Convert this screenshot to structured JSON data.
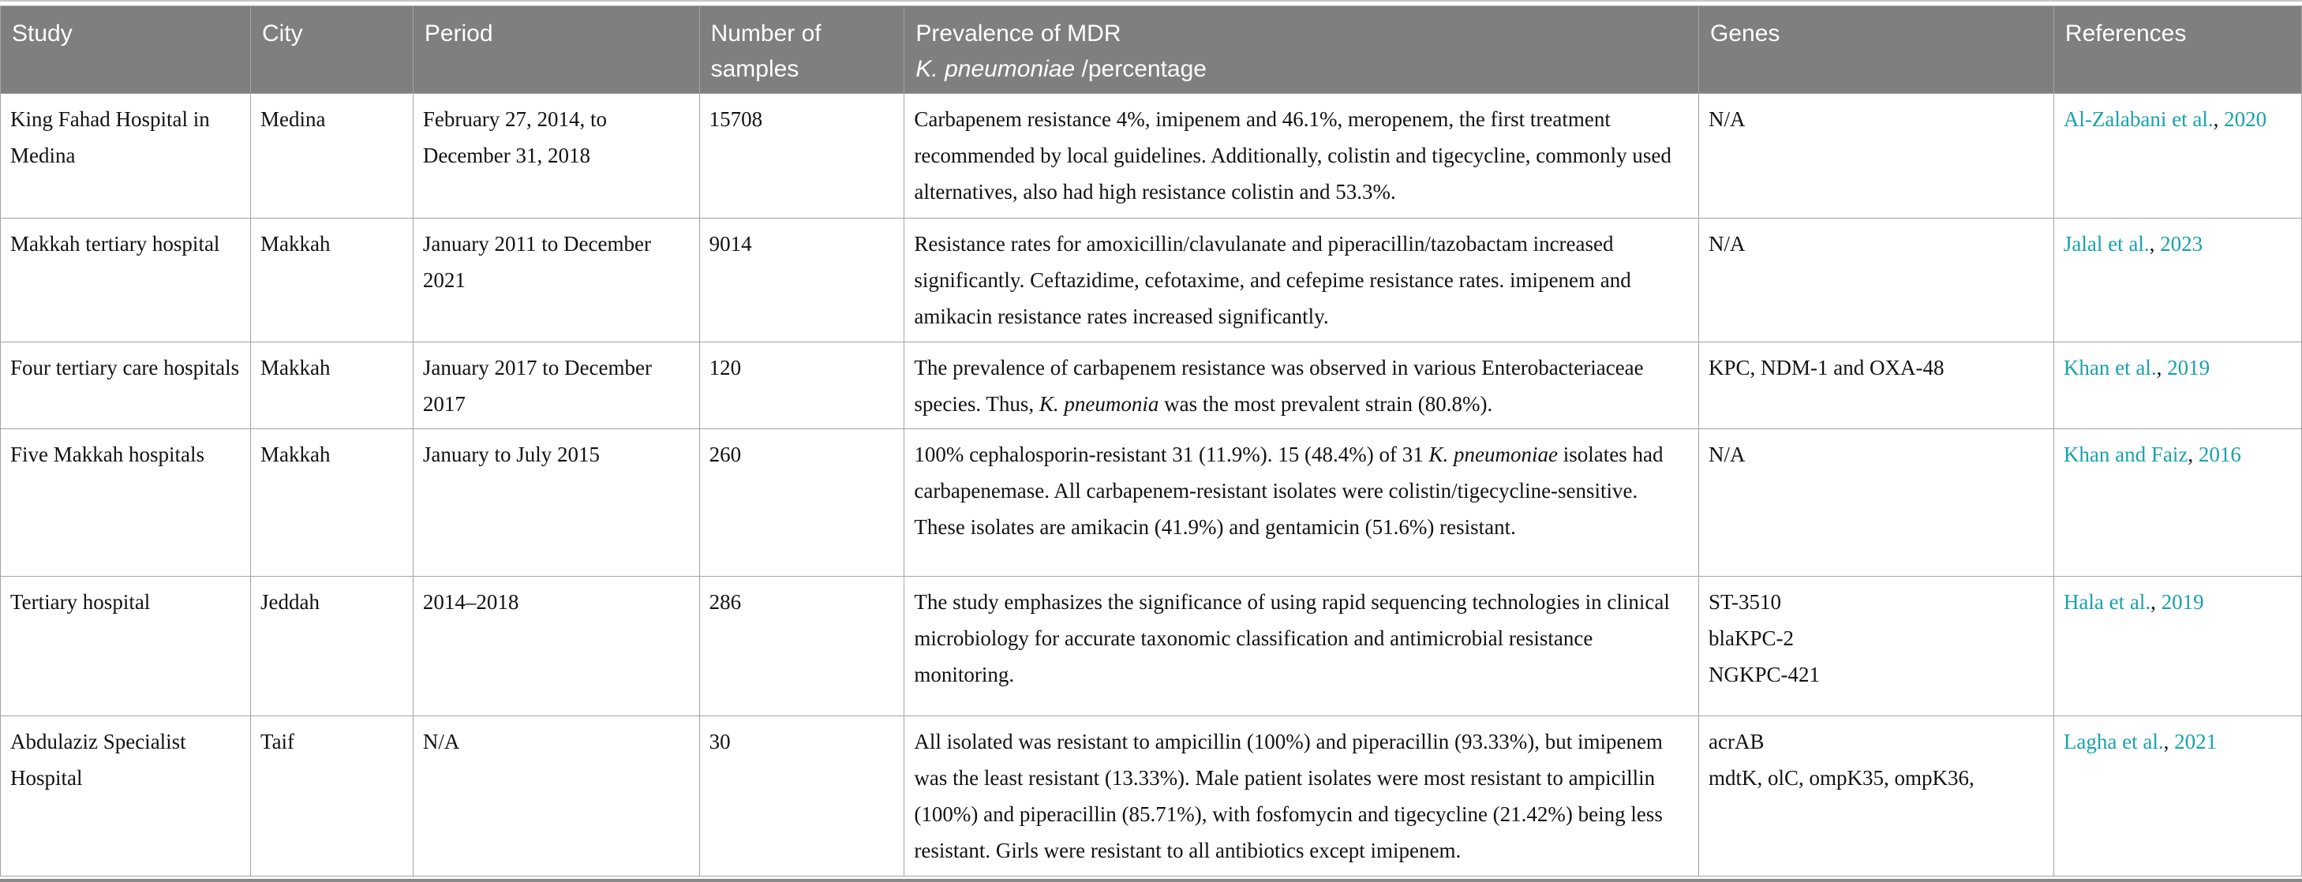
{
  "colors": {
    "accent": "#18a2ac",
    "header_bg": "#7f7f7f",
    "border": "#a3a3a3",
    "header_text": "#ffffff",
    "body_text": "#121212"
  },
  "table": {
    "ref_separator": ", ",
    "columns": [
      {
        "id": "study",
        "label": "Study"
      },
      {
        "id": "city",
        "label": "City"
      },
      {
        "id": "period",
        "label": "Period"
      },
      {
        "id": "samples",
        "label": "Number of samples"
      },
      {
        "id": "prevalence",
        "segments": [
          {
            "t": "Prevalence of MDR"
          },
          {
            "br": true
          },
          {
            "t": "K. pneumoniae",
            "i": true
          },
          {
            "t": " /percentage"
          }
        ]
      },
      {
        "id": "genes",
        "label": "Genes"
      },
      {
        "id": "references",
        "label": "References"
      }
    ],
    "rows": [
      {
        "study": "King Fahad Hospital in Medina",
        "city": "Medina",
        "period": "February 27, 2014, to December 31, 2018",
        "samples": "15708",
        "prevalence": [
          {
            "t": "Carbapenem resistance 4%, imipenem and 46.1%, meropenem, the first treatment recommended by local guidelines. Additionally, colistin and tigecycline, commonly used alternatives, also had high resistance colistin and 53.3%."
          }
        ],
        "genes": [
          "N/A"
        ],
        "reference": {
          "authors": "Al-Zalabani et al.",
          "year": "2020"
        }
      },
      {
        "study": "Makkah tertiary hospital",
        "city": "Makkah",
        "period": "January 2011 to December 2021",
        "samples": "9014",
        "prevalence": [
          {
            "t": "Resistance rates for amoxicillin/clavulanate and piperacillin/tazobactam increased significantly. Ceftazidime, cefotaxime, and cefepime resistance rates. imipenem and amikacin resistance rates increased significantly."
          }
        ],
        "genes": [
          "N/A"
        ],
        "reference": {
          "authors": "Jalal et al.",
          "year": "2023"
        }
      },
      {
        "study": "Four tertiary care hospitals",
        "city": "Makkah",
        "period": "January 2017 to December 2017",
        "samples": "120",
        "prevalence": [
          {
            "t": "The prevalence of carbapenem resistance was observed in various Enterobacteriaceae species. Thus, "
          },
          {
            "t": "K. pneumonia",
            "i": true
          },
          {
            "t": " was the most prevalent strain (80.8%)."
          }
        ],
        "genes": [
          "KPC, NDM-1 and OXA-48"
        ],
        "reference": {
          "authors": "Khan et al.",
          "year": "2019"
        }
      },
      {
        "study": "Five Makkah hospitals",
        "city": "Makkah",
        "period": "January to July 2015",
        "samples": "260",
        "prevalence": [
          {
            "t": "100% cephalosporin-resistant 31 (11.9%). 15 (48.4%) of 31 "
          },
          {
            "t": "K. pneumoniae",
            "i": true
          },
          {
            "t": " isolates had carbapenemase. All carbapenem-resistant isolates were colistin/tigecycline-sensitive. These isolates are amikacin (41.9%) and gentamicin (51.6%) resistant."
          }
        ],
        "genes": [
          "N/A"
        ],
        "reference": {
          "authors": "Khan and Faiz",
          "year": "2016"
        }
      },
      {
        "study": "Tertiary hospital",
        "city": "Jeddah",
        "period": "2014–2018",
        "samples": "286",
        "prevalence": [
          {
            "t": "The study emphasizes the significance of using rapid sequencing technologies in clinical microbiology for accurate taxonomic classification and antimicrobial resistance monitoring."
          }
        ],
        "genes": [
          "ST-3510",
          "blaKPC-2",
          "NGKPC-421"
        ],
        "reference": {
          "authors": "Hala et al.",
          "year": "2019"
        }
      },
      {
        "study": "Abdulaziz Specialist Hospital",
        "city": "Taif",
        "period": "N/A",
        "samples": "30",
        "prevalence": [
          {
            "t": "All isolated was resistant to ampicillin (100%) and piperacillin (93.33%), but imipenem was the least resistant (13.33%). Male patient isolates were most resistant to ampicillin (100%) and piperacillin (85.71%), with fosfomycin and tigecycline (21.42%) being less resistant. Girls were resistant to all antibiotics except imipenem."
          }
        ],
        "genes": [
          "acrAB",
          "mdtK, olC, ompK35, ompK36,"
        ],
        "reference": {
          "authors": "Lagha et al.",
          "year": "2021"
        }
      }
    ]
  }
}
